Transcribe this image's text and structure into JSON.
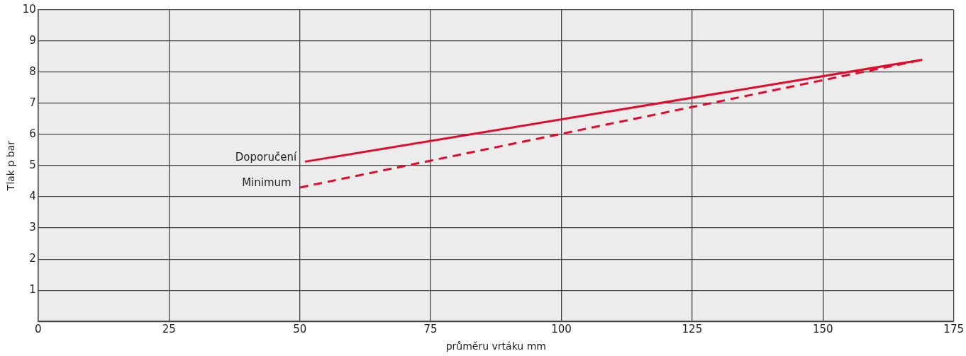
{
  "chart_data": {
    "type": "line",
    "xlabel": "průměru vrtáku mm",
    "ylabel": "Tlak p bar",
    "xlim": [
      0,
      175
    ],
    "xticks": [
      0,
      25,
      50,
      75,
      100,
      125,
      150,
      175
    ],
    "ylim": [
      0,
      10
    ],
    "yticks": [
      {
        "value": 0,
        "label": null
      },
      1,
      2,
      3,
      4,
      5,
      6,
      7,
      8,
      9,
      10
    ],
    "grid": true,
    "legend": false,
    "marker": "none",
    "series": [
      {
        "name": "Doporučení",
        "color": "#e30b2c",
        "line_style": "solid",
        "x": [
          51,
          169
        ],
        "values": [
          5.13,
          8.4
        ]
      },
      {
        "name": "Minimum",
        "color": "#e30b2c",
        "line_style": "dashed",
        "x": [
          50,
          169
        ],
        "values": [
          4.3,
          8.4
        ]
      }
    ]
  }
}
